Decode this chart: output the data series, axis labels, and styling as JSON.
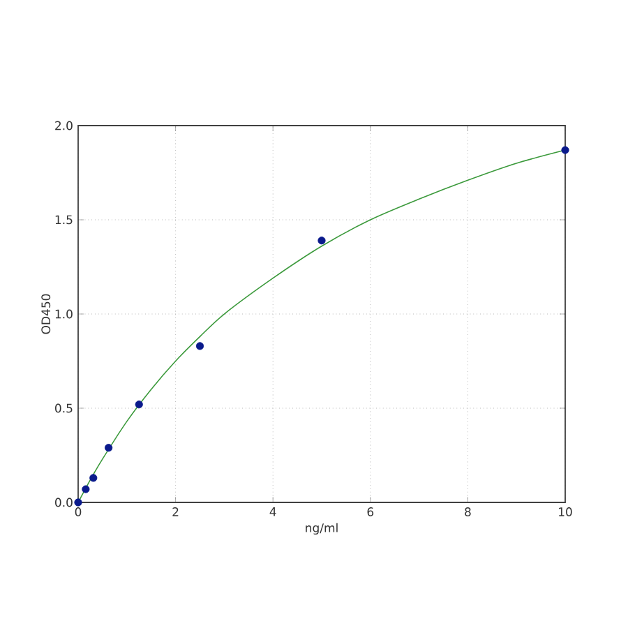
{
  "chart_data": {
    "type": "scatter",
    "xlabel": "ng/ml",
    "ylabel": "OD450",
    "xlim": [
      0,
      10
    ],
    "ylim": [
      0,
      2.0
    ],
    "xticks": [
      0,
      2,
      4,
      6,
      8,
      10
    ],
    "yticks": [
      {
        "value": 0,
        "label": "0.0"
      },
      0.5,
      {
        "value": 1,
        "label": "1.0"
      },
      1.5,
      {
        "value": 2,
        "label": "2.0"
      }
    ],
    "grid": true,
    "series": [
      {
        "type": "scatter",
        "color": "#0a1a8c",
        "marker": "circle",
        "x": [
          0,
          0.156,
          0.312,
          0.625,
          1.25,
          2.5,
          5,
          10
        ],
        "values": [
          0,
          0.07,
          0.13,
          0.29,
          0.52,
          0.83,
          1.39,
          1.87
        ]
      },
      {
        "type": "line",
        "color": "#3c9a3c",
        "marker": "none",
        "line_style": "solid",
        "x": [
          0,
          0.25,
          0.5,
          1,
          1.5,
          2,
          2.5,
          3,
          4,
          5,
          6,
          7,
          8,
          9,
          10
        ],
        "values": [
          0,
          0.12,
          0.23,
          0.43,
          0.6,
          0.75,
          0.88,
          1.0,
          1.19,
          1.36,
          1.5,
          1.61,
          1.71,
          1.8,
          1.87
        ]
      }
    ]
  }
}
